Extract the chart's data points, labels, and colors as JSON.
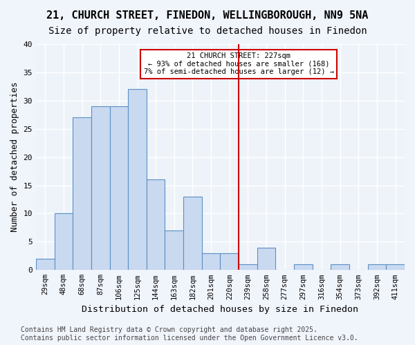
{
  "title1": "21, CHURCH STREET, FINEDON, WELLINGBOROUGH, NN9 5NA",
  "title2": "Size of property relative to detached houses in Finedon",
  "xlabel": "Distribution of detached houses by size in Finedon",
  "ylabel": "Number of detached properties",
  "bin_labels": [
    "29sqm",
    "48sqm",
    "68sqm",
    "87sqm",
    "106sqm",
    "125sqm",
    "144sqm",
    "163sqm",
    "182sqm",
    "201sqm",
    "220sqm",
    "239sqm",
    "258sqm",
    "277sqm",
    "297sqm",
    "316sqm",
    "354sqm",
    "373sqm",
    "392sqm",
    "411sqm"
  ],
  "bar_values": [
    2,
    10,
    27,
    29,
    29,
    32,
    16,
    7,
    13,
    3,
    3,
    1,
    4,
    0,
    1,
    0,
    1,
    0,
    1,
    1
  ],
  "bar_color": "#c9d9f0",
  "bar_edge_color": "#5a8fc4",
  "vline_x": 10.5,
  "vline_color": "#cc0000",
  "annotation_title": "21 CHURCH STREET: 227sqm",
  "annotation_line1": "← 93% of detached houses are smaller (168)",
  "annotation_line2": "7% of semi-detached houses are larger (12) →",
  "annotation_box_color": "#cc0000",
  "ylim": [
    0,
    40
  ],
  "yticks": [
    0,
    5,
    10,
    15,
    20,
    25,
    30,
    35,
    40
  ],
  "fig_bg_color": "#f0f4fb",
  "ax_bg_color": "#eef3fa",
  "grid_color": "#ffffff",
  "title_fontsize": 11,
  "subtitle_fontsize": 10,
  "axis_label_fontsize": 9,
  "tick_fontsize": 8,
  "footer_fontsize": 7,
  "footer": "Contains HM Land Registry data © Crown copyright and database right 2025.\nContains public sector information licensed under the Open Government Licence v3.0."
}
